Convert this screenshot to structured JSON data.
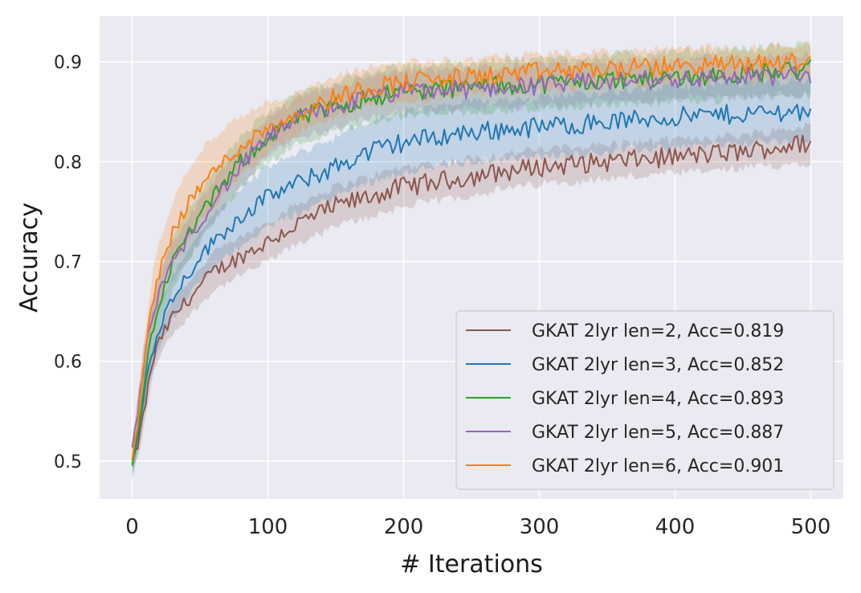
{
  "chart_data": {
    "type": "line",
    "title": "",
    "xlabel": "# Iterations",
    "ylabel": "Accuracy",
    "xlim": [
      -24,
      524
    ],
    "ylim": [
      0.462,
      0.946
    ],
    "xticks": [
      0,
      100,
      200,
      300,
      400,
      500
    ],
    "xtick_labels": [
      "0",
      "100",
      "200",
      "300",
      "400",
      "500"
    ],
    "yticks": [
      0.5,
      0.6,
      0.7,
      0.8,
      0.9
    ],
    "ytick_labels": [
      "0.5",
      "0.6",
      "0.7",
      "0.8",
      "0.9"
    ],
    "grid": true,
    "background": "#eaeaf2",
    "legend_position": "lower-right",
    "x": [
      0,
      5,
      10,
      15,
      20,
      30,
      40,
      50,
      60,
      80,
      100,
      125,
      150,
      175,
      200,
      250,
      300,
      350,
      400,
      450,
      500
    ],
    "series": [
      {
        "name": "GKAT 2lyr len=2, Acc=0.819",
        "color": "#8c564b",
        "values": [
          0.5,
          0.52,
          0.56,
          0.6,
          0.62,
          0.645,
          0.66,
          0.675,
          0.69,
          0.705,
          0.72,
          0.74,
          0.755,
          0.765,
          0.775,
          0.785,
          0.795,
          0.8,
          0.805,
          0.81,
          0.819
        ],
        "lower": [
          0.49,
          0.505,
          0.545,
          0.585,
          0.605,
          0.628,
          0.642,
          0.657,
          0.671,
          0.686,
          0.7,
          0.72,
          0.735,
          0.745,
          0.755,
          0.767,
          0.778,
          0.783,
          0.788,
          0.793,
          0.8
        ],
        "upper": [
          0.51,
          0.535,
          0.575,
          0.615,
          0.635,
          0.662,
          0.678,
          0.693,
          0.709,
          0.724,
          0.74,
          0.76,
          0.775,
          0.785,
          0.795,
          0.803,
          0.812,
          0.817,
          0.822,
          0.827,
          0.836
        ]
      },
      {
        "name": "GKAT 2lyr len=3, Acc=0.852",
        "color": "#1f77b4",
        "values": [
          0.495,
          0.53,
          0.58,
          0.61,
          0.635,
          0.665,
          0.685,
          0.705,
          0.72,
          0.745,
          0.765,
          0.78,
          0.795,
          0.81,
          0.82,
          0.83,
          0.835,
          0.84,
          0.845,
          0.848,
          0.852
        ],
        "lower": [
          0.485,
          0.515,
          0.56,
          0.59,
          0.615,
          0.643,
          0.662,
          0.68,
          0.693,
          0.717,
          0.735,
          0.75,
          0.765,
          0.78,
          0.79,
          0.8,
          0.805,
          0.81,
          0.815,
          0.818,
          0.822
        ],
        "upper": [
          0.505,
          0.545,
          0.6,
          0.63,
          0.655,
          0.687,
          0.708,
          0.73,
          0.747,
          0.773,
          0.795,
          0.81,
          0.825,
          0.84,
          0.85,
          0.86,
          0.865,
          0.87,
          0.875,
          0.878,
          0.882
        ]
      },
      {
        "name": "GKAT 2lyr len=4, Acc=0.893",
        "color": "#2ca02c",
        "values": [
          0.49,
          0.54,
          0.59,
          0.63,
          0.66,
          0.7,
          0.725,
          0.745,
          0.765,
          0.8,
          0.825,
          0.845,
          0.855,
          0.865,
          0.87,
          0.875,
          0.878,
          0.882,
          0.885,
          0.888,
          0.893
        ],
        "lower": [
          0.48,
          0.52,
          0.565,
          0.605,
          0.635,
          0.675,
          0.7,
          0.72,
          0.74,
          0.775,
          0.8,
          0.82,
          0.83,
          0.84,
          0.845,
          0.85,
          0.853,
          0.857,
          0.86,
          0.863,
          0.868
        ],
        "upper": [
          0.5,
          0.56,
          0.615,
          0.655,
          0.685,
          0.725,
          0.75,
          0.77,
          0.79,
          0.825,
          0.85,
          0.87,
          0.88,
          0.89,
          0.895,
          0.9,
          0.903,
          0.907,
          0.91,
          0.913,
          0.918
        ]
      },
      {
        "name": "GKAT 2lyr len=5, Acc=0.887",
        "color": "#9467bd",
        "values": [
          0.51,
          0.56,
          0.61,
          0.645,
          0.67,
          0.7,
          0.72,
          0.74,
          0.76,
          0.795,
          0.825,
          0.845,
          0.855,
          0.865,
          0.87,
          0.873,
          0.877,
          0.88,
          0.883,
          0.885,
          0.887
        ],
        "lower": [
          0.5,
          0.54,
          0.59,
          0.625,
          0.65,
          0.68,
          0.7,
          0.72,
          0.74,
          0.775,
          0.805,
          0.825,
          0.835,
          0.845,
          0.85,
          0.853,
          0.857,
          0.86,
          0.863,
          0.865,
          0.867
        ],
        "upper": [
          0.52,
          0.58,
          0.63,
          0.665,
          0.69,
          0.72,
          0.74,
          0.76,
          0.78,
          0.815,
          0.845,
          0.865,
          0.875,
          0.885,
          0.89,
          0.893,
          0.897,
          0.9,
          0.903,
          0.905,
          0.907
        ]
      },
      {
        "name": "GKAT 2lyr len=6, Acc=0.901",
        "color": "#ff7f0e",
        "values": [
          0.5,
          0.55,
          0.61,
          0.66,
          0.69,
          0.73,
          0.755,
          0.775,
          0.79,
          0.815,
          0.835,
          0.85,
          0.865,
          0.875,
          0.88,
          0.885,
          0.89,
          0.893,
          0.896,
          0.898,
          0.901
        ],
        "lower": [
          0.49,
          0.53,
          0.585,
          0.63,
          0.66,
          0.7,
          0.72,
          0.74,
          0.755,
          0.785,
          0.81,
          0.83,
          0.845,
          0.855,
          0.86,
          0.867,
          0.872,
          0.876,
          0.879,
          0.881,
          0.884
        ],
        "upper": [
          0.51,
          0.57,
          0.635,
          0.69,
          0.72,
          0.76,
          0.79,
          0.81,
          0.825,
          0.845,
          0.86,
          0.87,
          0.885,
          0.895,
          0.9,
          0.903,
          0.908,
          0.91,
          0.913,
          0.915,
          0.918
        ]
      }
    ]
  }
}
